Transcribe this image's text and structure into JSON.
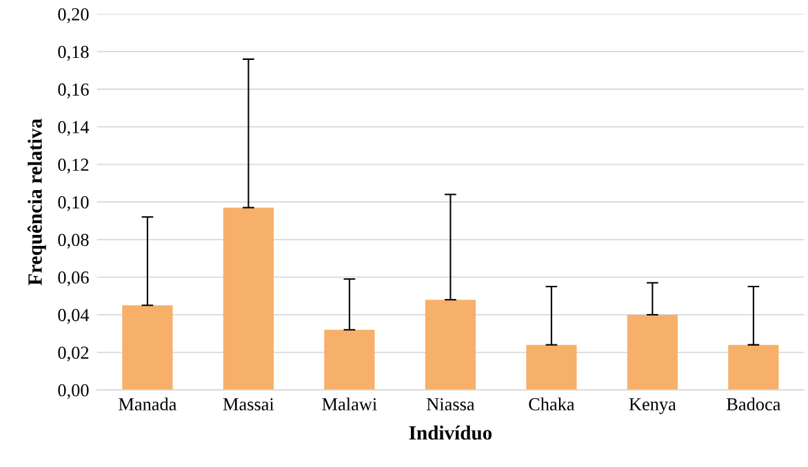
{
  "chart_data": {
    "type": "bar",
    "xlabel": "Indivíduo",
    "ylabel": "Frequência relativa",
    "categories": [
      "Manada",
      "Massai",
      "Malawi",
      "Niassa",
      "Chaka",
      "Kenya",
      "Badoca"
    ],
    "values": [
      0.045,
      0.097,
      0.032,
      0.048,
      0.024,
      0.04,
      0.024
    ],
    "errors": [
      [
        0.045,
        0.092
      ],
      [
        0.097,
        0.176
      ],
      [
        0.032,
        0.059
      ],
      [
        0.048,
        0.104
      ],
      [
        0.024,
        0.055
      ],
      [
        0.04,
        0.057
      ],
      [
        0.024,
        0.055
      ]
    ],
    "color": "#f7b06a",
    "ylim": [
      0,
      0.2
    ],
    "yticks": [
      {
        "value": 0,
        "label": "0,00"
      },
      {
        "value": 0.02,
        "label": "0,02"
      },
      {
        "value": 0.04,
        "label": "0,04"
      },
      {
        "value": 0.06,
        "label": "0,06"
      },
      {
        "value": 0.08,
        "label": "0,08"
      },
      {
        "value": 0.1,
        "label": "0,10"
      },
      {
        "value": 0.12,
        "label": "0,12"
      },
      {
        "value": 0.14,
        "label": "0,14"
      },
      {
        "value": 0.16,
        "label": "0,16"
      },
      {
        "value": 0.18,
        "label": "0,18"
      },
      {
        "value": 0.2,
        "label": "0,20"
      }
    ],
    "grid": "y"
  }
}
